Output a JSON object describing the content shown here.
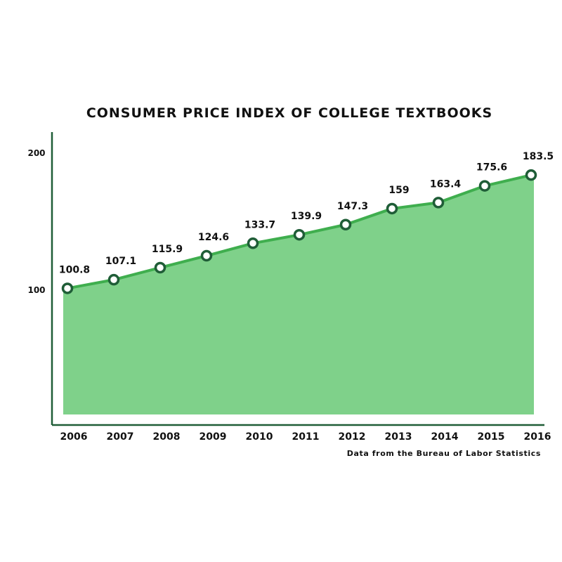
{
  "chart_data": {
    "type": "area",
    "title": "CONSUMER PRICE INDEX OF COLLEGE TEXTBOOKS",
    "source": "Data from the Bureau of Labor Statistics",
    "categories": [
      "2006",
      "2007",
      "2008",
      "2009",
      "2010",
      "2011",
      "2012",
      "2013",
      "2014",
      "2015",
      "2016"
    ],
    "values": [
      100.8,
      107.1,
      115.9,
      124.6,
      133.7,
      139.9,
      147.3,
      159,
      163.4,
      175.6,
      183.5
    ],
    "data_labels": [
      "100.8",
      "107.1",
      "115.9",
      "124.6",
      "133.7",
      "139.9",
      "147.3",
      "159",
      "163.4",
      "175.6",
      "183.5"
    ],
    "y_ticks": [
      {
        "value": 100,
        "label": "100"
      },
      {
        "value": 200,
        "label": "200"
      }
    ],
    "xlabel": "",
    "ylabel": "",
    "grid": false,
    "legend": "none",
    "colors": {
      "fill": "#7fd18a",
      "line": "#3fae4e",
      "marker_stroke": "#1f5d37",
      "marker_fill": "#ffffff",
      "axis": "#1f5d37"
    }
  }
}
